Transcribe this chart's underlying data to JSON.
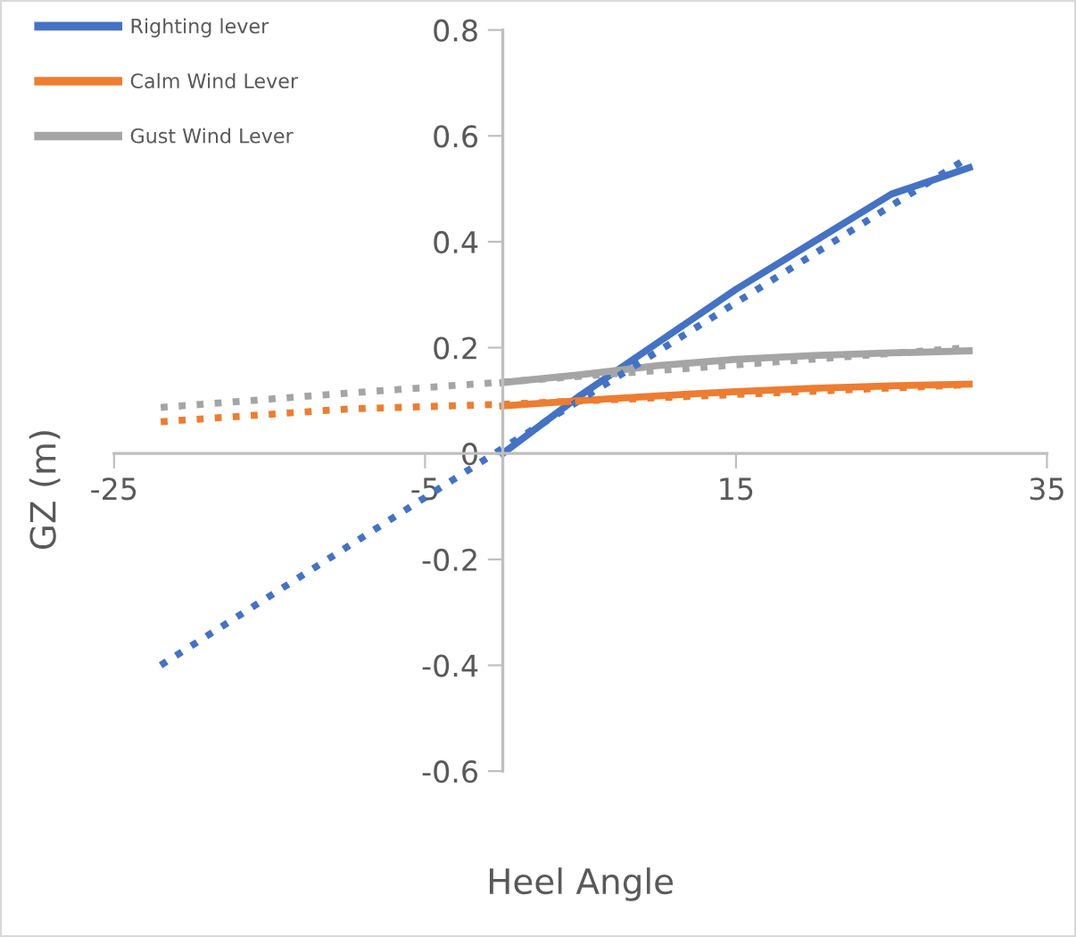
{
  "chart_data": {
    "type": "line",
    "xlabel": "Heel Angle",
    "ylabel": "GZ (m)",
    "xlim": [
      -25,
      35
    ],
    "xticks": [
      -25,
      -5,
      15,
      35
    ],
    "ylim": [
      -0.6,
      0.8
    ],
    "yticks": [
      -0.6,
      -0.4,
      -0.2,
      0,
      0.2,
      0.4,
      0.6,
      0.8
    ],
    "grid": false,
    "legend": "top left",
    "line_style": "solid",
    "series": [
      {
        "name": "Righting lever",
        "color": "#4472c4",
        "x": [
          0,
          5,
          10,
          15,
          20,
          25,
          30
        ],
        "values": [
          0,
          0.11,
          0.21,
          0.31,
          0.4,
          0.49,
          0.54
        ]
      },
      {
        "name": "Calm Wind Lever",
        "color": "#ed7d31",
        "x": [
          0,
          5,
          10,
          15,
          20,
          25,
          30
        ],
        "values": [
          0.09,
          0.1,
          0.109,
          0.117,
          0.123,
          0.128,
          0.131
        ]
      },
      {
        "name": "Gust Wind Lever",
        "color": "#a5a5a5",
        "x": [
          0,
          5,
          10,
          15,
          20,
          25,
          30
        ],
        "values": [
          0.134,
          0.149,
          0.166,
          0.178,
          0.185,
          0.19,
          0.194
        ]
      },
      {
        "color": "#4472c4",
        "line_style": "dotted",
        "x": [
          -22,
          0,
          30
        ],
        "values": [
          -0.4,
          0.01,
          0.56
        ]
      },
      {
        "color": "#ed7d31",
        "line_style": "dotted",
        "x": [
          -22,
          -10,
          0,
          30
        ],
        "values": [
          0.06,
          0.084,
          0.093,
          0.13
        ]
      },
      {
        "color": "#a5a5a5",
        "line_style": "dotted",
        "x": [
          -22,
          -10,
          0,
          30
        ],
        "values": [
          0.087,
          0.114,
          0.135,
          0.2
        ]
      }
    ]
  }
}
